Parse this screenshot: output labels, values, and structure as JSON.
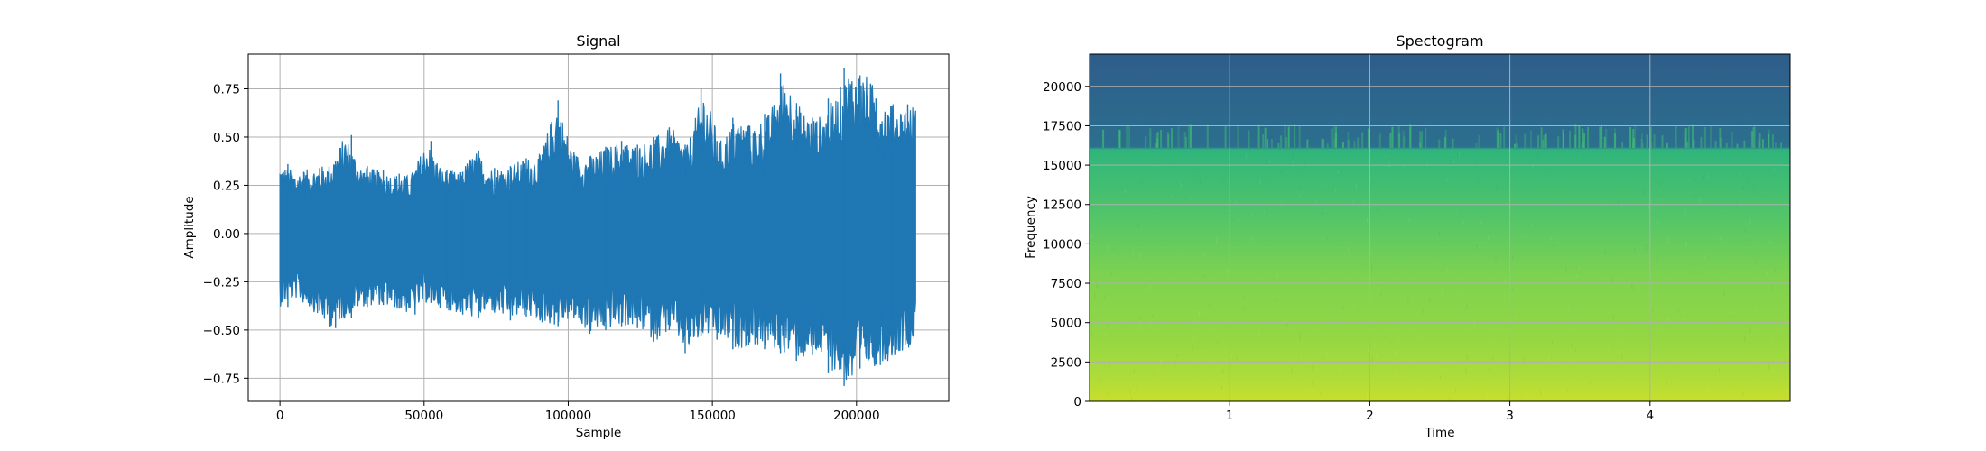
{
  "chart_data": [
    {
      "type": "line",
      "title": "Signal",
      "xlabel": "Sample",
      "ylabel": "Amplitude",
      "xlim": [
        -11000,
        232000
      ],
      "ylim": [
        -0.87,
        0.93
      ],
      "xticks": [
        0,
        50000,
        100000,
        150000,
        200000
      ],
      "xtick_labels": [
        "0",
        "50000",
        "100000",
        "150000",
        "200000"
      ],
      "yticks": [
        -0.75,
        -0.5,
        -0.25,
        0.0,
        0.25,
        0.5,
        0.75
      ],
      "ytick_labels": [
        "−0.75",
        "−0.50",
        "−0.25",
        "0.00",
        "0.25",
        "0.50",
        "0.75"
      ],
      "grid": true,
      "series": [
        {
          "color": "#1f77b4",
          "x_start": 0,
          "x_end": 220500,
          "envelope_bins": 40,
          "upper": [
            0.36,
            0.32,
            0.34,
            0.36,
            0.51,
            0.35,
            0.33,
            0.31,
            0.3,
            0.48,
            0.33,
            0.32,
            0.43,
            0.34,
            0.35,
            0.39,
            0.41,
            0.69,
            0.42,
            0.4,
            0.45,
            0.48,
            0.46,
            0.5,
            0.55,
            0.46,
            0.75,
            0.48,
            0.6,
            0.56,
            0.62,
            0.83,
            0.64,
            0.6,
            0.7,
            0.86,
            0.82,
            0.7,
            0.66,
            0.67
          ],
          "lower": [
            -0.38,
            -0.34,
            -0.4,
            -0.49,
            -0.44,
            -0.38,
            -0.37,
            -0.39,
            -0.42,
            -0.36,
            -0.39,
            -0.42,
            -0.44,
            -0.41,
            -0.45,
            -0.43,
            -0.46,
            -0.48,
            -0.44,
            -0.52,
            -0.5,
            -0.48,
            -0.49,
            -0.56,
            -0.5,
            -0.62,
            -0.53,
            -0.55,
            -0.6,
            -0.58,
            -0.6,
            -0.62,
            -0.66,
            -0.63,
            -0.72,
            -0.79,
            -0.7,
            -0.68,
            -0.62,
            -0.57
          ]
        }
      ]
    },
    {
      "type": "heatmap",
      "title": "Spectogram",
      "xlabel": "Time",
      "ylabel": "Frequency",
      "xlim": [
        0,
        5.0
      ],
      "ylim": [
        0,
        22050
      ],
      "xticks": [
        1,
        2,
        3,
        4
      ],
      "xtick_labels": [
        "1",
        "2",
        "3",
        "4"
      ],
      "yticks": [
        0,
        2500,
        5000,
        7500,
        10000,
        12500,
        15000,
        17500,
        20000
      ],
      "ytick_labels": [
        "0",
        "2500",
        "5000",
        "7500",
        "10000",
        "12500",
        "15000",
        "17500",
        "20000"
      ],
      "grid": true,
      "colormap": "viridis",
      "cutoff_frequency": 16100,
      "frequency_bands": [
        {
          "freq": 0,
          "color": "#c8df2c"
        },
        {
          "freq": 1500,
          "color": "#aedc3a"
        },
        {
          "freq": 4000,
          "color": "#94d743"
        },
        {
          "freq": 8000,
          "color": "#7dd250"
        },
        {
          "freq": 12000,
          "color": "#50c46a"
        },
        {
          "freq": 14500,
          "color": "#3bbb74"
        },
        {
          "freq": 16000,
          "color": "#2fb47c"
        },
        {
          "freq": 16150,
          "color": "#2c6f8e"
        },
        {
          "freq": 22050,
          "color": "#2e5d8a"
        }
      ]
    }
  ]
}
